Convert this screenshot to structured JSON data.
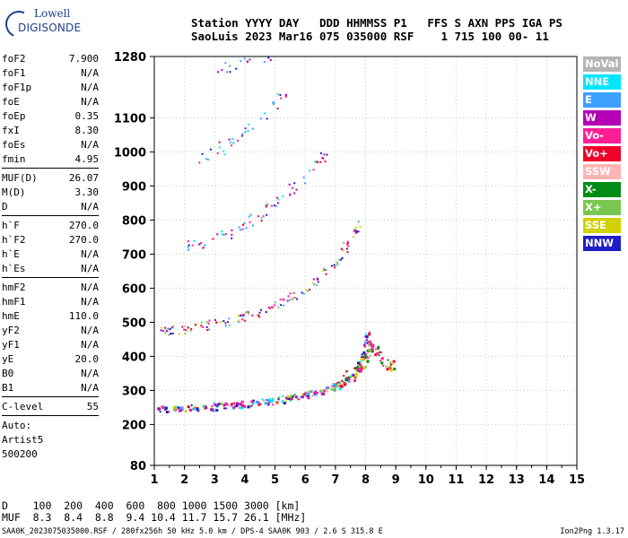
{
  "logo": {
    "line1": "Lowell",
    "line2": "DIGISONDE"
  },
  "header": {
    "line1": "Station YYYY DAY   DDD HHMMSS P1   FFS S AXN PPS IGA PS",
    "line2": "SaoLuis 2023 Mar16 075 035000 RSF    1 715 100 00- 11"
  },
  "params_groups": [
    [
      [
        "foF2",
        "7.900"
      ],
      [
        "foF1",
        "N/A"
      ],
      [
        "foF1p",
        "N/A"
      ],
      [
        "foE",
        "N/A"
      ],
      [
        "foEp",
        "0.35"
      ],
      [
        "fxI",
        "8.30"
      ],
      [
        "foEs",
        "N/A"
      ],
      [
        "fmin",
        "4.95"
      ]
    ],
    [
      [
        "MUF(D)",
        "26.07"
      ],
      [
        "M(D)",
        "3.30"
      ],
      [
        "D",
        "N/A"
      ]
    ],
    [
      [
        "h`F",
        "270.0"
      ],
      [
        "h`F2",
        "270.0"
      ],
      [
        "h`E",
        "N/A"
      ],
      [
        "h`Es",
        "N/A"
      ]
    ],
    [
      [
        "hmF2",
        "N/A"
      ],
      [
        "hmF1",
        "N/A"
      ],
      [
        "hmE",
        "110.0"
      ],
      [
        "yF2",
        "N/A"
      ],
      [
        "yF1",
        "N/A"
      ],
      [
        "yE",
        "20.0"
      ],
      [
        "B0",
        "N/A"
      ],
      [
        "B1",
        "N/A"
      ]
    ],
    [
      [
        "C-level",
        "55"
      ]
    ]
  ],
  "autoscale": [
    "Auto:",
    "Artist5",
    "500200"
  ],
  "legend": [
    {
      "label": "NoVal",
      "color": "#b4b4b4"
    },
    {
      "label": "NNE",
      "color": "#00e6ff"
    },
    {
      "label": "E",
      "color": "#3ca0ff"
    },
    {
      "label": "W",
      "color": "#b400b4"
    },
    {
      "label": "Vo-",
      "color": "#ff1e96"
    },
    {
      "label": "Vo+",
      "color": "#f00028"
    },
    {
      "label": "SSW",
      "color": "#ffb4b4"
    },
    {
      "label": "X-",
      "color": "#008c14"
    },
    {
      "label": "X+",
      "color": "#78c850"
    },
    {
      "label": "SSE",
      "color": "#d2d200"
    },
    {
      "label": "NNW",
      "color": "#1e1ec8"
    }
  ],
  "muf_table": {
    "line1": "D    100  200  400  600  800 1000 1500 3000 [km]",
    "line2": "MUF  8.3  8.4  8.8  9.4 10.4 11.7 15.7 26.1 [MHz]"
  },
  "footer": "SAA0K_2023075035000.RSF / 280fx256h 50 kHz 5.0 km / DPS-4 SAA0K 903 / 2.6 S 315.8 E",
  "version": "Ion2Png 1.3.17",
  "chart_data": {
    "type": "scatter",
    "title": "",
    "xlabel": "",
    "ylabel": "",
    "xlim": [
      1,
      15
    ],
    "ylim": [
      80,
      1280
    ],
    "xticks": [
      1,
      2,
      3,
      4,
      5,
      6,
      7,
      8,
      9,
      10,
      11,
      12,
      13,
      14,
      15
    ],
    "yticks": [
      80,
      200,
      300,
      400,
      500,
      600,
      700,
      800,
      900,
      1000,
      1100,
      1280
    ],
    "grid": true,
    "series": [
      {
        "color_key": "ordinary_1hop",
        "x": [
          1.05,
          1.5,
          2,
          2.5,
          3,
          3.5,
          4,
          4.5,
          5,
          5.5,
          6,
          6.5,
          7,
          7.3,
          7.6,
          7.8,
          7.95,
          8.05
        ],
        "y": [
          245,
          248,
          250,
          252,
          255,
          258,
          262,
          266,
          272,
          280,
          290,
          300,
          315,
          330,
          350,
          380,
          420,
          470
        ]
      },
      {
        "color_key": "ordinary_2hop",
        "x": [
          1.1,
          1.5,
          2,
          2.5,
          3,
          3.5,
          4,
          4.5,
          5,
          5.5,
          6,
          6.5,
          7,
          7.3,
          7.6,
          7.8
        ],
        "y": [
          475,
          478,
          482,
          488,
          496,
          505,
          518,
          532,
          550,
          572,
          600,
          632,
          680,
          720,
          760,
          790
        ]
      },
      {
        "color_key": "ordinary_3hop",
        "x": [
          2,
          2.5,
          3,
          3.5,
          4,
          4.5,
          5,
          5.5,
          6,
          6.5,
          6.8
        ],
        "y": [
          720,
          732,
          748,
          768,
          792,
          820,
          852,
          890,
          930,
          975,
          1010
        ]
      },
      {
        "color_key": "ordinary_4hop",
        "x": [
          2.5,
          3,
          3.5,
          4,
          4.5,
          5,
          5.5
        ],
        "y": [
          980,
          1000,
          1030,
          1065,
          1105,
          1150,
          1200
        ]
      },
      {
        "color_key": "ordinary_5hop",
        "x": [
          3,
          3.5,
          4,
          4.5,
          5
        ],
        "y": [
          1240,
          1255,
          1268,
          1276,
          1280
        ]
      },
      {
        "color_key": "extraordinary",
        "x": [
          7,
          7.5,
          7.8,
          8,
          8.1,
          8.3,
          8.6,
          8.9
        ],
        "y": [
          330,
          345,
          365,
          395,
          430,
          420,
          385,
          370
        ]
      }
    ]
  }
}
